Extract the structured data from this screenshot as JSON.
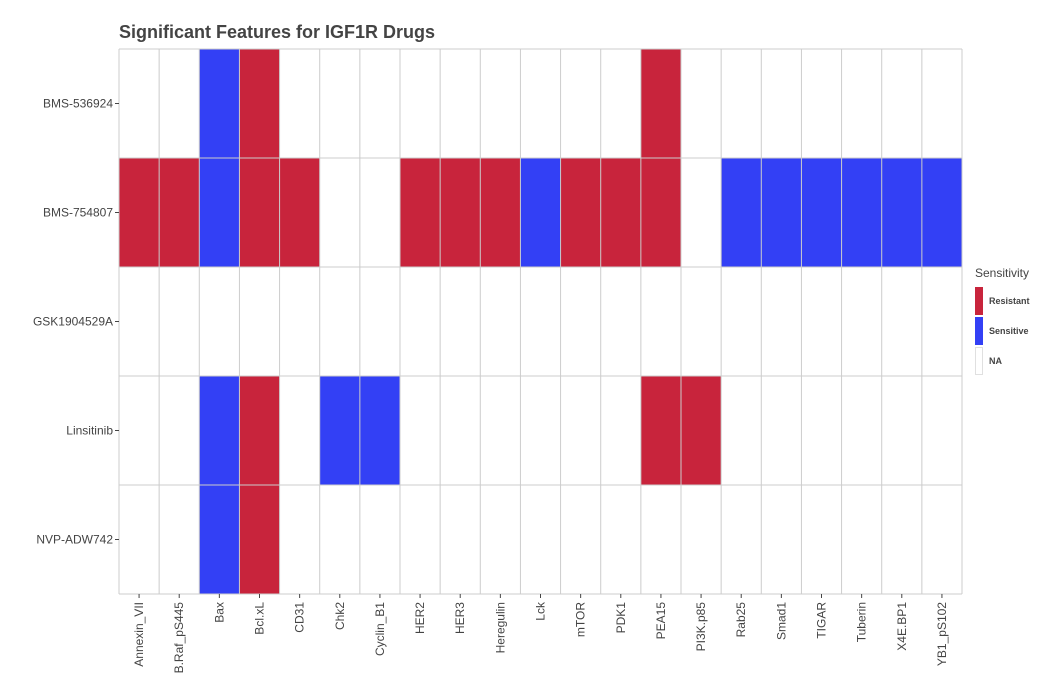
{
  "chart_data": {
    "type": "heatmap",
    "title": "Significant Features for IGF1R Drugs",
    "xlabel": "",
    "ylabel": "",
    "x_categories": [
      "Annexin_VII",
      "B.Raf_pS445",
      "Bax",
      "Bcl.xL",
      "CD31",
      "Chk2",
      "Cyclin_B1",
      "HER2",
      "HER3",
      "Heregulin",
      "Lck",
      "mTOR",
      "PDK1",
      "PEA15",
      "PI3K.p85",
      "Rab25",
      "Smad1",
      "TIGAR",
      "Tuberin",
      "X4E.BP1",
      "YB1_pS102"
    ],
    "y_categories": [
      "BMS-536924",
      "BMS-754807",
      "GSK1904529A",
      "Linsitinib",
      "NVP-ADW742"
    ],
    "cells": [
      [
        "NA",
        "NA",
        "Sensitive",
        "Resistant",
        "NA",
        "NA",
        "NA",
        "NA",
        "NA",
        "NA",
        "NA",
        "NA",
        "NA",
        "Resistant",
        "NA",
        "NA",
        "NA",
        "NA",
        "NA",
        "NA",
        "NA"
      ],
      [
        "Resistant",
        "Resistant",
        "Sensitive",
        "Resistant",
        "Resistant",
        "NA",
        "NA",
        "Resistant",
        "Resistant",
        "Resistant",
        "Sensitive",
        "Resistant",
        "Resistant",
        "Resistant",
        "NA",
        "Sensitive",
        "Sensitive",
        "Sensitive",
        "Sensitive",
        "Sensitive",
        "Sensitive"
      ],
      [
        "NA",
        "NA",
        "NA",
        "NA",
        "NA",
        "NA",
        "NA",
        "NA",
        "NA",
        "NA",
        "NA",
        "NA",
        "NA",
        "NA",
        "NA",
        "NA",
        "NA",
        "NA",
        "NA",
        "NA",
        "NA"
      ],
      [
        "NA",
        "NA",
        "Sensitive",
        "Resistant",
        "NA",
        "Sensitive",
        "Sensitive",
        "NA",
        "NA",
        "NA",
        "NA",
        "NA",
        "NA",
        "Resistant",
        "Resistant",
        "NA",
        "NA",
        "NA",
        "NA",
        "NA",
        "NA"
      ],
      [
        "NA",
        "NA",
        "Sensitive",
        "Resistant",
        "NA",
        "NA",
        "NA",
        "NA",
        "NA",
        "NA",
        "NA",
        "NA",
        "NA",
        "NA",
        "NA",
        "NA",
        "NA",
        "NA",
        "NA",
        "NA",
        "NA"
      ]
    ],
    "legend": {
      "title": "Sensitivity",
      "placement": "right",
      "entries": [
        {
          "label": "Resistant",
          "color": "#C8243C"
        },
        {
          "label": "Sensitive",
          "color": "#3340F5"
        },
        {
          "label": "NA",
          "color": "#FFFFFF"
        }
      ]
    },
    "grid": true
  }
}
